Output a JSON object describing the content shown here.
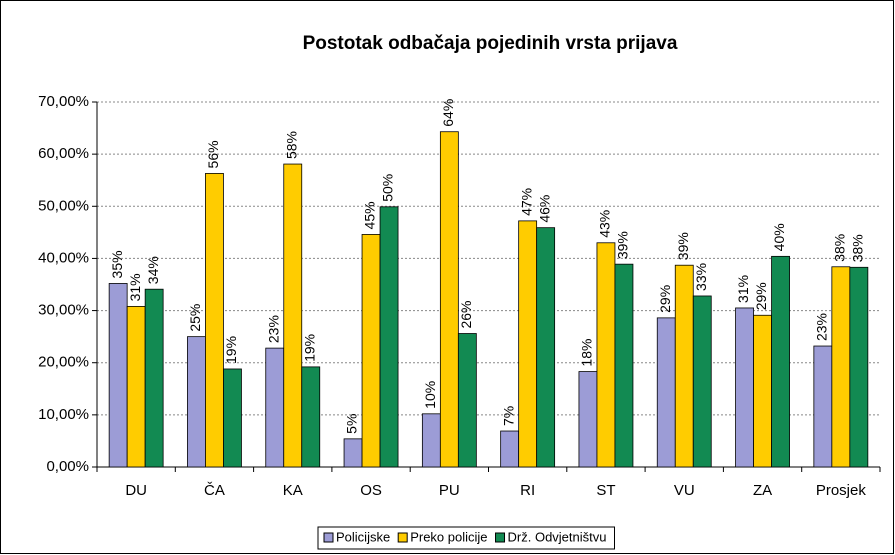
{
  "chart_data": {
    "type": "bar",
    "title": "Postotak odbačaja pojedinih vrsta prijava",
    "categories": [
      "DU",
      "ČA",
      "KA",
      "OS",
      "PU",
      "RI",
      "ST",
      "VU",
      "ZA",
      "Prosjek"
    ],
    "series": [
      {
        "name": "Policijske",
        "color": "#9c9cd6",
        "values": [
          35.2,
          25.0,
          22.8,
          5.4,
          10.2,
          6.9,
          18.3,
          28.6,
          30.5,
          23.2
        ],
        "value_labels": [
          "35%",
          "25%",
          "23%",
          "5%",
          "10%",
          "7%",
          "18%",
          "29%",
          "31%",
          "23%"
        ]
      },
      {
        "name": "Preko policije",
        "color": "#ffcc00",
        "values": [
          30.8,
          56.3,
          58.1,
          44.6,
          64.3,
          47.2,
          43.0,
          38.7,
          29.1,
          38.4
        ],
        "value_labels": [
          "31%",
          "56%",
          "58%",
          "45%",
          "64%",
          "47%",
          "43%",
          "39%",
          "29%",
          "38%"
        ]
      },
      {
        "name": "Drž. Odvjetništvu",
        "color": "#128a52",
        "values": [
          34.1,
          18.8,
          19.2,
          49.9,
          25.6,
          45.9,
          38.9,
          32.8,
          40.4,
          38.3
        ],
        "value_labels": [
          "34%",
          "19%",
          "19%",
          "50%",
          "26%",
          "46%",
          "39%",
          "33%",
          "40%",
          "38%"
        ]
      }
    ],
    "ylim": [
      0,
      70
    ],
    "yticks": [
      {
        "value": 0,
        "label": "0,00%"
      },
      {
        "value": 10,
        "label": "10,00%"
      },
      {
        "value": 20,
        "label": "20,00%"
      },
      {
        "value": 30,
        "label": "30,00%"
      },
      {
        "value": 40,
        "label": "40,00%"
      },
      {
        "value": 50,
        "label": "50,00%"
      },
      {
        "value": 60,
        "label": "60,00%"
      },
      {
        "value": 70,
        "label": "70,00%"
      }
    ],
    "grid": true
  }
}
